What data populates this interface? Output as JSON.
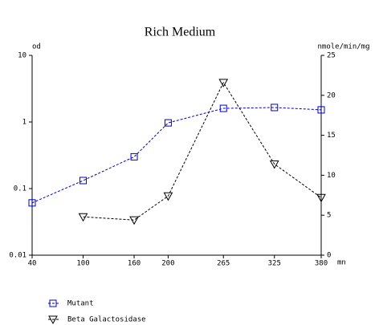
{
  "chart_data": {
    "type": "line",
    "title": "Rich Medium",
    "y_label": "od",
    "y2_label": "nmole/min/mg",
    "x_label": "mn",
    "x": [
      40,
      100,
      160,
      200,
      265,
      325,
      380
    ],
    "xlim": [
      40,
      380
    ],
    "xticks": [
      40,
      100,
      160,
      200,
      265,
      325,
      380
    ],
    "ylim": [
      0.01,
      10
    ],
    "ylog": true,
    "yticks": [
      0.01,
      0.1,
      1,
      10
    ],
    "y2lim": [
      0,
      25
    ],
    "y2ticks": [
      0,
      5,
      10,
      15,
      20,
      25
    ],
    "series": [
      {
        "name": "Mutant",
        "color": "#0000cc",
        "marker": "square",
        "values": [
          0.061,
          0.132,
          0.3,
          0.97,
          1.6,
          1.65,
          1.52
        ]
      },
      {
        "name": "Beta Galactosidase",
        "color": "#000000",
        "marker": "triangle-down",
        "axis": "y2",
        "values": [
          null,
          4.8,
          4.4,
          7.4,
          21.6,
          11.4,
          7.2
        ]
      }
    ]
  }
}
